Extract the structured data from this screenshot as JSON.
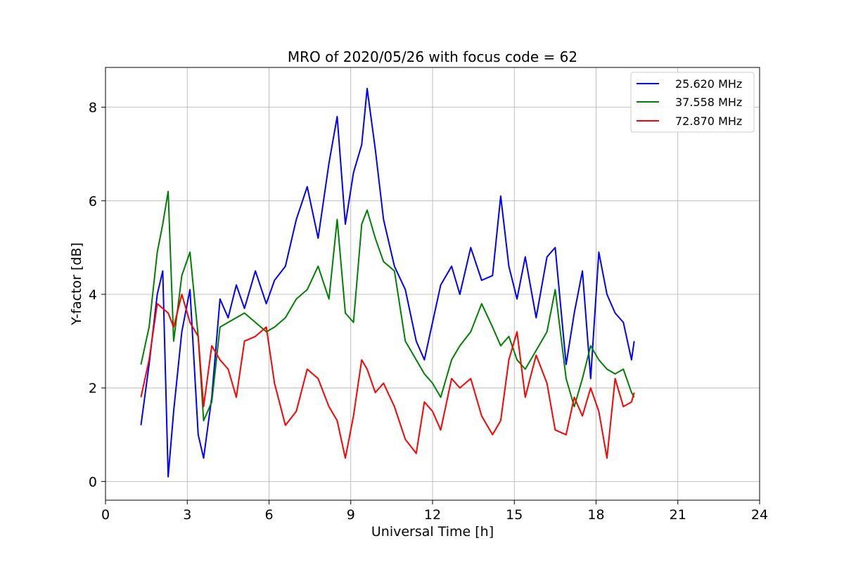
{
  "chart_data": {
    "type": "line",
    "title": "MRO of 2020/05/26 with focus code = 62",
    "xlabel": "Universal Time [h]",
    "ylabel": "Y-factor [dB]",
    "xlim": [
      0,
      24
    ],
    "ylim": [
      -0.4,
      8.85
    ],
    "xticks": [
      0,
      3,
      6,
      9,
      12,
      15,
      18,
      21,
      24
    ],
    "yticks": [
      0,
      2,
      4,
      6,
      8
    ],
    "grid": true,
    "legend_position": "top-right",
    "series": [
      {
        "name": "25.620 MHz",
        "color": "#0000ff",
        "x": [
          1.3,
          1.6,
          1.9,
          2.1,
          2.3,
          2.5,
          2.8,
          3.1,
          3.4,
          3.6,
          3.9,
          4.2,
          4.5,
          4.8,
          5.1,
          5.5,
          5.9,
          6.2,
          6.6,
          7.0,
          7.4,
          7.8,
          8.2,
          8.5,
          8.8,
          9.1,
          9.4,
          9.6,
          9.9,
          10.2,
          10.6,
          11.0,
          11.4,
          11.7,
          12.0,
          12.3,
          12.7,
          13.0,
          13.4,
          13.8,
          14.2,
          14.5,
          14.8,
          15.1,
          15.4,
          15.8,
          16.2,
          16.5,
          16.9,
          17.2,
          17.5,
          17.8,
          18.1,
          18.4,
          18.7,
          19.0,
          19.3,
          19.4
        ],
        "y": [
          1.2,
          2.5,
          4.0,
          4.5,
          0.1,
          1.5,
          3.2,
          4.1,
          1.0,
          0.5,
          1.8,
          3.9,
          3.5,
          4.2,
          3.7,
          4.5,
          3.8,
          4.3,
          4.6,
          5.6,
          6.3,
          5.2,
          6.8,
          7.8,
          5.5,
          6.6,
          7.2,
          8.4,
          7.1,
          5.6,
          4.6,
          4.1,
          3.0,
          2.6,
          3.4,
          4.2,
          4.6,
          4.0,
          5.0,
          4.3,
          4.4,
          6.1,
          4.6,
          3.9,
          4.8,
          3.5,
          4.8,
          5.0,
          2.5,
          3.6,
          4.5,
          2.2,
          4.9,
          4.0,
          3.6,
          3.4,
          2.6,
          3.0
        ]
      },
      {
        "name": "37.558 MHz",
        "color": "#008000",
        "x": [
          1.3,
          1.6,
          1.9,
          2.1,
          2.3,
          2.5,
          2.8,
          3.1,
          3.4,
          3.6,
          3.9,
          4.2,
          4.5,
          4.8,
          5.1,
          5.5,
          5.9,
          6.2,
          6.6,
          7.0,
          7.4,
          7.8,
          8.2,
          8.5,
          8.8,
          9.1,
          9.4,
          9.6,
          9.9,
          10.2,
          10.6,
          11.0,
          11.4,
          11.7,
          12.0,
          12.3,
          12.7,
          13.0,
          13.4,
          13.8,
          14.2,
          14.5,
          14.8,
          15.1,
          15.4,
          15.8,
          16.2,
          16.5,
          16.9,
          17.2,
          17.5,
          17.8,
          18.1,
          18.4,
          18.7,
          19.0,
          19.3,
          19.4
        ],
        "y": [
          2.5,
          3.3,
          4.9,
          5.5,
          6.2,
          3.0,
          4.4,
          4.9,
          3.1,
          1.3,
          1.7,
          3.3,
          3.4,
          3.5,
          3.6,
          3.4,
          3.2,
          3.3,
          3.5,
          3.9,
          4.1,
          4.6,
          3.9,
          5.6,
          3.6,
          3.4,
          5.5,
          5.8,
          5.2,
          4.7,
          4.5,
          3.0,
          2.6,
          2.3,
          2.1,
          1.8,
          2.6,
          2.9,
          3.2,
          3.8,
          3.3,
          2.9,
          3.1,
          2.6,
          2.4,
          2.8,
          3.2,
          4.1,
          2.2,
          1.6,
          2.2,
          2.9,
          2.6,
          2.4,
          2.3,
          2.4,
          1.9,
          1.8
        ]
      },
      {
        "name": "72.870 MHz",
        "color": "#ff0000",
        "x": [
          1.3,
          1.6,
          1.9,
          2.1,
          2.3,
          2.5,
          2.8,
          3.1,
          3.4,
          3.6,
          3.9,
          4.2,
          4.5,
          4.8,
          5.1,
          5.5,
          5.9,
          6.2,
          6.6,
          7.0,
          7.4,
          7.8,
          8.2,
          8.5,
          8.8,
          9.1,
          9.4,
          9.6,
          9.9,
          10.2,
          10.6,
          11.0,
          11.4,
          11.7,
          12.0,
          12.3,
          12.7,
          13.0,
          13.4,
          13.8,
          14.2,
          14.5,
          14.8,
          15.1,
          15.4,
          15.8,
          16.2,
          16.5,
          16.9,
          17.2,
          17.5,
          17.8,
          18.1,
          18.4,
          18.7,
          19.0,
          19.3,
          19.4
        ],
        "y": [
          1.8,
          2.6,
          3.8,
          3.7,
          3.6,
          3.3,
          4.0,
          3.4,
          3.1,
          1.6,
          2.9,
          2.6,
          2.4,
          1.8,
          3.0,
          3.1,
          3.3,
          2.1,
          1.2,
          1.5,
          2.4,
          2.2,
          1.6,
          1.3,
          0.5,
          1.4,
          2.6,
          2.4,
          1.9,
          2.1,
          1.6,
          0.9,
          0.6,
          1.7,
          1.5,
          1.1,
          2.2,
          2.0,
          2.2,
          1.4,
          1.0,
          1.3,
          2.6,
          3.2,
          1.8,
          2.7,
          2.1,
          1.1,
          1.0,
          1.8,
          1.4,
          2.0,
          1.5,
          0.5,
          2.2,
          1.6,
          1.7,
          1.9
        ]
      }
    ]
  }
}
